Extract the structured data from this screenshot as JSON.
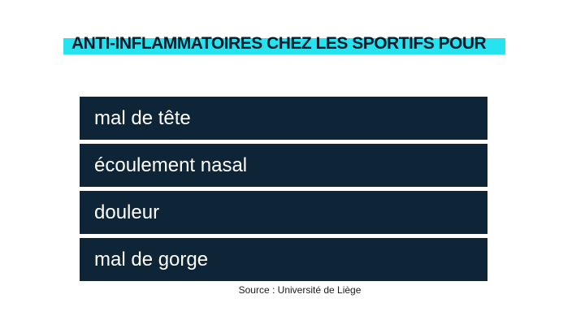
{
  "title": "ANTI-INFLAMMATOIRES CHEZ LES SPORTIFS POUR",
  "items": [
    {
      "label": "mal de tête"
    },
    {
      "label": "écoulement nasal"
    },
    {
      "label": "douleur"
    },
    {
      "label": "mal de gorge"
    }
  ],
  "source": {
    "text": "Source :  Université de Liège"
  },
  "colors": {
    "highlight": "#27e3ef",
    "row_background": "#0d2537",
    "title_text": "#0d1c2c",
    "row_text": "#ffffff"
  }
}
